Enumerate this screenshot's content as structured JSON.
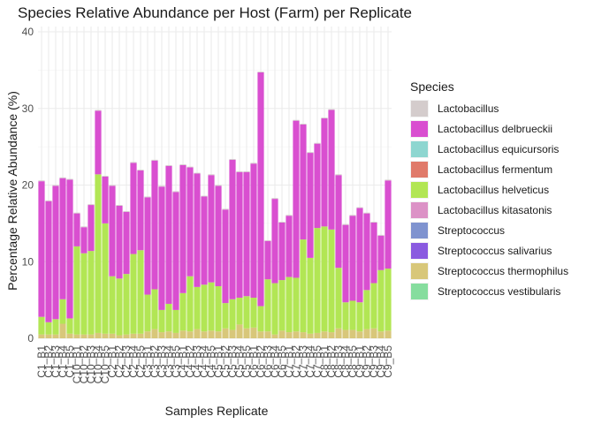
{
  "chart_data": {
    "type": "bar",
    "stacked": true,
    "title": "Species Relative Abundance per Host (Farm) per Replicate",
    "xlabel": "Samples Replicate",
    "ylabel": "Percentage Relative Abundance (%)",
    "ylim": [
      0,
      40
    ],
    "yticks": [
      0,
      10,
      20,
      30,
      40
    ],
    "grid": true,
    "legend_title": "Species",
    "legend_position": "right",
    "categories": [
      "C1_B1",
      "C1_B2",
      "C1_B3",
      "C1_B4",
      "C1_B5",
      "C10_B1",
      "C10_B2",
      "C10_B3",
      "C10_B4",
      "C10_B5",
      "C2_B1",
      "C2_B2",
      "C2_B3",
      "C2_B4",
      "C2_B5",
      "C3_B1",
      "C3_B2",
      "C3_B3",
      "C3_B4",
      "C3_B5",
      "C4_B1",
      "C4_B2",
      "C4_B3",
      "C4_B4",
      "C4_B5",
      "C5_B1",
      "C5_B2",
      "C5_B3",
      "C5_B4",
      "C5_B5",
      "C6_B1",
      "C6_B2",
      "C6_B3",
      "C6_B4",
      "C6_B5",
      "C7_B1",
      "C7_B2",
      "C7_B3",
      "C7_B4",
      "C7_B5",
      "C8_B1",
      "C8_B2",
      "C8_B3",
      "C8_B4",
      "C8_B5",
      "C9_B1",
      "C9_B2",
      "C9_B3",
      "C9_B4",
      "C9_B5"
    ],
    "visible_tick_labels": [
      "C1_B1",
      "C1_B2",
      "C1_B3",
      "C1_B4",
      "C1_B5",
      "C10_B1",
      "C10_B2",
      "C10_B3",
      "C10_B4",
      "C10_B5",
      "C2_B1",
      "C2_B2",
      "C2_B3",
      "C2_B4",
      "C2_B5",
      "C3_B1",
      "C3_B2",
      "C3_B3",
      "C3_B4",
      "C3_B5",
      "C4_B1",
      "C4_B2",
      "C4_B3",
      "C4_B4",
      "C4_B5",
      "C5_B1",
      "C5_B2",
      "C5_B3",
      "C5_B4",
      "C5_B5",
      "C6_B1",
      "C6_B2",
      "C6_B3",
      "C6_B4",
      "C6_B5",
      "C7_B1",
      "C7_B2",
      "C7_B3",
      "C7_B4",
      "C7_B5",
      "C8_B1",
      "C8_B2",
      "C8_B3",
      "C8_B4",
      "C8_B5",
      "C9_B1",
      "C9_B2",
      "C9_B3",
      "C9_B4",
      "C9_B5"
    ],
    "series": [
      {
        "name": "Lactobacillus",
        "color": "#d4cccc",
        "values": [
          0.1,
          0.1,
          0.1,
          0.1,
          0.1,
          0.1,
          0.1,
          0.1,
          0.1,
          0.1,
          0.1,
          0.1,
          0.1,
          0.1,
          0.1,
          0.1,
          0.1,
          0.1,
          0.1,
          0.1,
          0.1,
          0.1,
          0.1,
          0.1,
          0.1,
          0.1,
          0.1,
          0.1,
          0.1,
          0.1,
          0.1,
          0.1,
          0.1,
          0.1,
          0.1,
          0.1,
          0.1,
          0.1,
          0.1,
          0.1,
          0.1,
          0.1,
          0.1,
          0.1,
          0.1,
          0.1,
          0.1,
          0.1,
          0.1,
          0.1
        ]
      },
      {
        "name": "Lactobacillus delbrueckii",
        "color": "#d94fd0",
        "values": [
          17.7,
          15.8,
          17.4,
          15.8,
          18.1,
          4.3,
          3.4,
          6.0,
          8.3,
          6.1,
          11.8,
          9.5,
          8.1,
          11.9,
          10.4,
          12.7,
          16.8,
          16.1,
          18.0,
          15.4,
          16.7,
          14.2,
          14.8,
          11.5,
          14.0,
          13.1,
          12.2,
          18.2,
          16.4,
          16.2,
          17.5,
          30.5,
          5.0,
          11.0,
          7.5,
          8.0,
          20.5,
          15.0,
          13.7,
          11.0,
          14.1,
          15.6,
          12.1,
          10.1,
          11.1,
          12.3,
          10.0,
          7.9,
          4.5,
          11.5
        ]
      },
      {
        "name": "Lactobacillus equicursoris",
        "color": "#8ed6d0",
        "values": [
          0,
          0,
          0,
          0,
          0,
          0,
          0,
          0,
          0,
          0,
          0,
          0,
          0,
          0,
          0,
          0,
          0,
          0,
          0,
          0,
          0,
          0,
          0,
          0,
          0,
          0,
          0,
          0,
          0,
          0,
          0,
          0,
          0,
          0,
          0,
          0,
          0,
          0,
          0,
          0,
          0,
          0,
          0,
          0,
          0,
          0,
          0,
          0,
          0,
          0
        ]
      },
      {
        "name": "Lactobacillus fermentum",
        "color": "#e07a6a",
        "values": [
          0,
          0,
          0,
          0,
          0,
          0,
          0,
          0,
          0,
          0,
          0,
          0,
          0,
          0,
          0,
          0,
          0,
          0,
          0,
          0,
          0,
          0,
          0,
          0,
          0,
          0,
          0,
          0,
          0,
          0,
          0,
          0,
          0,
          0,
          0,
          0,
          0,
          0,
          0,
          0,
          0,
          0,
          0,
          0,
          0,
          0,
          0,
          0,
          0,
          0
        ]
      },
      {
        "name": "Lactobacillus helveticus",
        "color": "#b2e654",
        "values": [
          2.3,
          1.6,
          2.0,
          3.2,
          2.0,
          11.5,
          10.6,
          10.9,
          20.7,
          14.4,
          7.5,
          7.4,
          7.9,
          10.4,
          10.9,
          4.8,
          5.2,
          2.9,
          3.6,
          3.0,
          4.9,
          7.2,
          5.5,
          6.1,
          6.3,
          5.9,
          3.3,
          4.0,
          3.5,
          4.2,
          3.9,
          3.3,
          6.8,
          6.7,
          6.6,
          7.2,
          7.0,
          12.1,
          9.9,
          13.7,
          13.7,
          13.4,
          7.9,
          3.6,
          3.8,
          3.8,
          5.1,
          5.9,
          8.0,
          8.1
        ]
      },
      {
        "name": "Lactobacillus kitasatonis",
        "color": "#dc92c6",
        "values": [
          0,
          0,
          0,
          0,
          0,
          0,
          0,
          0,
          0,
          0,
          0,
          0,
          0,
          0,
          0,
          0,
          0,
          0,
          0,
          0,
          0,
          0,
          0,
          0,
          0,
          0,
          0,
          0,
          0,
          0,
          0,
          0,
          0,
          0,
          0,
          0,
          0,
          0,
          0,
          0,
          0,
          0,
          0,
          0,
          0,
          0,
          0,
          0,
          0,
          0
        ]
      },
      {
        "name": "Streptococcus",
        "color": "#7f93cf",
        "values": [
          0,
          0,
          0,
          0,
          0,
          0,
          0,
          0,
          0,
          0,
          0,
          0,
          0,
          0,
          0,
          0,
          0,
          0,
          0,
          0,
          0,
          0,
          0,
          0,
          0,
          0,
          0,
          0,
          0,
          0,
          0,
          0,
          0,
          0,
          0,
          0,
          0,
          0,
          0,
          0,
          0,
          0,
          0,
          0,
          0,
          0,
          0,
          0,
          0,
          0
        ]
      },
      {
        "name": "Streptococcus salivarius",
        "color": "#8a5ae0",
        "values": [
          0,
          0,
          0,
          0,
          0,
          0,
          0,
          0,
          0,
          0,
          0,
          0,
          0,
          0,
          0,
          0,
          0,
          0,
          0,
          0,
          0,
          0,
          0,
          0,
          0,
          0,
          0,
          0,
          0,
          0,
          0,
          0,
          0,
          0,
          0,
          0,
          0,
          0,
          0,
          0,
          0,
          0,
          0,
          0,
          0,
          0,
          0,
          0,
          0,
          0
        ]
      },
      {
        "name": "Streptococcus thermophilus",
        "color": "#d8c77a",
        "values": [
          0.5,
          0.5,
          0.5,
          1.9,
          0.6,
          0.5,
          0.5,
          0.5,
          0.7,
          0.6,
          0.6,
          0.4,
          0.5,
          0.6,
          0.6,
          0.9,
          1.2,
          0.8,
          0.9,
          0.7,
          1.0,
          0.9,
          1.2,
          0.9,
          1.0,
          0.9,
          1.3,
          1.1,
          1.8,
          1.3,
          1.4,
          0.9,
          0.9,
          0.5,
          1.0,
          0.8,
          0.9,
          0.8,
          0.6,
          0.7,
          0.9,
          0.8,
          1.3,
          1.1,
          1.1,
          0.9,
          1.2,
          1.3,
          0.9,
          1.0
        ]
      },
      {
        "name": "Streptococcus vestibularis",
        "color": "#86dd9e",
        "values": [
          0,
          0,
          0,
          0,
          0,
          0,
          0,
          0,
          0,
          0,
          0,
          0,
          0,
          0,
          0,
          0,
          0,
          0,
          0,
          0,
          0,
          0,
          0,
          0,
          0,
          0,
          0,
          0,
          0,
          0,
          0,
          0,
          0,
          0,
          0,
          0,
          0,
          0,
          0,
          0,
          0,
          0,
          0,
          0,
          0,
          0,
          0,
          0,
          0,
          0
        ]
      }
    ]
  }
}
